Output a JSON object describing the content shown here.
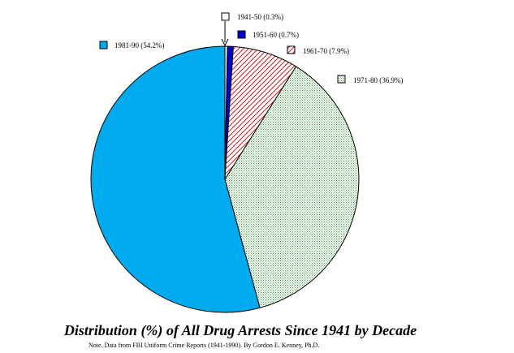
{
  "chart_data": {
    "type": "pie",
    "title": "Distribution (%) of All Drug Arrests Since 1941 by Decade",
    "note": "Note.  Data from FBI Uniform Crime Reports (1941-1990).  By Gordon E. Kenney, Ph.D.",
    "legend_placement": "around-pie",
    "slices": [
      {
        "category": "1941-50",
        "value": 0.3,
        "label": "1941-50 (0.3%)",
        "color": "#ffffff",
        "fill": "solid"
      },
      {
        "category": "1951-60",
        "value": 0.7,
        "label": "1951-60 (0.7%)",
        "color": "#0000cc",
        "fill": "solid"
      },
      {
        "category": "1961-70",
        "value": 7.9,
        "label": "1961-70 (7.9%)",
        "color": "#cc0000",
        "fill": "diagonal-hatch"
      },
      {
        "category": "1971-80",
        "value": 36.9,
        "label": "1971-80 (36.9%)",
        "color": "#339933",
        "fill": "crosshatch"
      },
      {
        "category": "1981-90",
        "value": 54.2,
        "label": "1981-90 (54.2%)",
        "color": "#00aaee",
        "fill": "solid"
      }
    ]
  }
}
